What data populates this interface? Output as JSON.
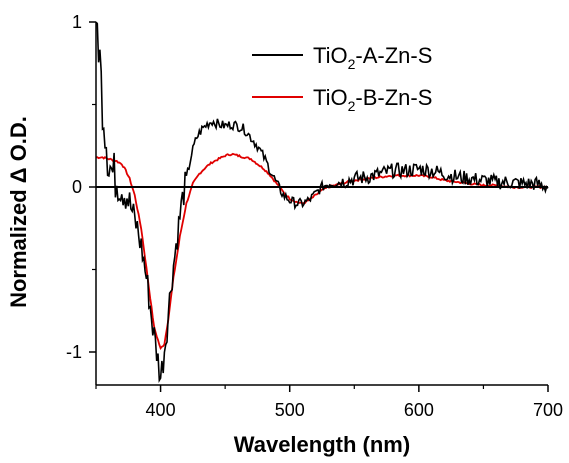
{
  "chart_data": {
    "type": "line",
    "xlabel": "Wavelength (nm)",
    "ylabel": "Normalized Δ O.D.",
    "xlim": [
      350,
      700
    ],
    "ylim": [
      -1.2,
      1.0
    ],
    "x_ticks": [
      400,
      500,
      600,
      700
    ],
    "y_ticks": [
      -1,
      0,
      1
    ],
    "grid": false,
    "legend": "top-right",
    "baseline": 0,
    "series": [
      {
        "name": "TiO2-A-Zn-S",
        "name_main": "TiO",
        "name_sub": "2",
        "name_rest": "-A-Zn-S",
        "color": "#000000",
        "noise": "high",
        "points": [
          [
            350,
            1.0
          ],
          [
            352,
            0.9
          ],
          [
            354,
            0.62
          ],
          [
            356,
            0.45
          ],
          [
            358,
            0.3
          ],
          [
            360,
            0.15
          ],
          [
            363,
            0.08
          ],
          [
            366,
            0.05
          ],
          [
            370,
            0.0
          ],
          [
            374,
            -0.05
          ],
          [
            378,
            -0.15
          ],
          [
            382,
            -0.25
          ],
          [
            386,
            -0.4
          ],
          [
            390,
            -0.6
          ],
          [
            394,
            -0.85
          ],
          [
            398,
            -1.05
          ],
          [
            400,
            -1.15
          ],
          [
            402,
            -1.05
          ],
          [
            405,
            -0.85
          ],
          [
            408,
            -0.6
          ],
          [
            412,
            -0.35
          ],
          [
            416,
            -0.12
          ],
          [
            420,
            0.05
          ],
          [
            424,
            0.2
          ],
          [
            428,
            0.3
          ],
          [
            432,
            0.35
          ],
          [
            436,
            0.38
          ],
          [
            440,
            0.4
          ],
          [
            445,
            0.38
          ],
          [
            450,
            0.37
          ],
          [
            455,
            0.38
          ],
          [
            460,
            0.37
          ],
          [
            465,
            0.35
          ],
          [
            470,
            0.3
          ],
          [
            475,
            0.25
          ],
          [
            480,
            0.18
          ],
          [
            485,
            0.1
          ],
          [
            490,
            0.02
          ],
          [
            495,
            -0.05
          ],
          [
            500,
            -0.08
          ],
          [
            505,
            -0.1
          ],
          [
            510,
            -0.1
          ],
          [
            515,
            -0.08
          ],
          [
            520,
            -0.04
          ],
          [
            525,
            0.0
          ],
          [
            530,
            0.02
          ],
          [
            540,
            0.03
          ],
          [
            550,
            0.05
          ],
          [
            560,
            0.06
          ],
          [
            570,
            0.08
          ],
          [
            580,
            0.1
          ],
          [
            590,
            0.1
          ],
          [
            600,
            0.11
          ],
          [
            610,
            0.1
          ],
          [
            620,
            0.08
          ],
          [
            630,
            0.06
          ],
          [
            640,
            0.05
          ],
          [
            650,
            0.04
          ],
          [
            660,
            0.03
          ],
          [
            670,
            0.03
          ],
          [
            680,
            0.02
          ],
          [
            690,
            0.02
          ],
          [
            700,
            0.0
          ]
        ]
      },
      {
        "name": "TiO2-B-Zn-S",
        "name_main": "TiO",
        "name_sub": "2",
        "name_rest": "-B-Zn-S",
        "color": "#e00000",
        "noise": "low",
        "points": [
          [
            350,
            0.18
          ],
          [
            355,
            0.18
          ],
          [
            360,
            0.17
          ],
          [
            365,
            0.16
          ],
          [
            370,
            0.14
          ],
          [
            373,
            0.1
          ],
          [
            376,
            0.05
          ],
          [
            380,
            -0.05
          ],
          [
            385,
            -0.25
          ],
          [
            390,
            -0.55
          ],
          [
            395,
            -0.85
          ],
          [
            400,
            -0.98
          ],
          [
            403,
            -0.95
          ],
          [
            406,
            -0.8
          ],
          [
            410,
            -0.55
          ],
          [
            415,
            -0.3
          ],
          [
            420,
            -0.1
          ],
          [
            425,
            0.02
          ],
          [
            430,
            0.08
          ],
          [
            435,
            0.12
          ],
          [
            440,
            0.15
          ],
          [
            445,
            0.17
          ],
          [
            450,
            0.19
          ],
          [
            455,
            0.2
          ],
          [
            460,
            0.19
          ],
          [
            465,
            0.18
          ],
          [
            470,
            0.17
          ],
          [
            475,
            0.14
          ],
          [
            480,
            0.11
          ],
          [
            485,
            0.07
          ],
          [
            490,
            0.02
          ],
          [
            495,
            -0.03
          ],
          [
            500,
            -0.07
          ],
          [
            505,
            -0.09
          ],
          [
            510,
            -0.1
          ],
          [
            515,
            -0.08
          ],
          [
            520,
            -0.05
          ],
          [
            525,
            -0.02
          ],
          [
            530,
            0.0
          ],
          [
            540,
            0.02
          ],
          [
            550,
            0.04
          ],
          [
            560,
            0.05
          ],
          [
            570,
            0.06
          ],
          [
            580,
            0.07
          ],
          [
            590,
            0.07
          ],
          [
            600,
            0.07
          ],
          [
            610,
            0.06
          ],
          [
            620,
            0.04
          ],
          [
            630,
            0.03
          ],
          [
            640,
            0.02
          ],
          [
            650,
            0.01
          ],
          [
            660,
            0.01
          ],
          [
            670,
            0.0
          ],
          [
            680,
            0.0
          ],
          [
            690,
            0.0
          ],
          [
            700,
            0.0
          ]
        ]
      }
    ]
  }
}
